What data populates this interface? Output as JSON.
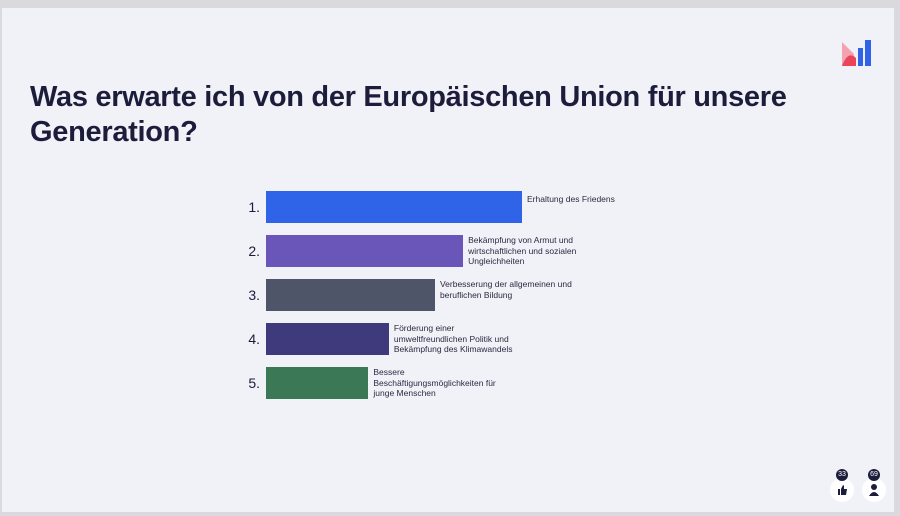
{
  "chart_data": {
    "type": "bar",
    "title": "Was erwarte ich von der Europäischen Union für unsere Generation?",
    "ranks": [
      "1.",
      "2.",
      "3.",
      "4.",
      "5."
    ],
    "categories": [
      "Erhaltung des Friedens",
      "Bekämpfung von Armut und wirtschaftlichen und sozialen Ungleichheiten",
      "Verbesserung der allgemeinen und beruflichen Bildung",
      "Förderung einer umweltfreundlichen Politik und Bekämpfung des Klimawandels",
      "Bessere Beschäftigungsmöglichkeiten für junge Menschen"
    ],
    "values": [
      100,
      77,
      66,
      48,
      40
    ],
    "colors": [
      "#2f64e8",
      "#6a55b9",
      "#4e5568",
      "#3f3a7b",
      "#3b7856"
    ]
  },
  "footer": {
    "reactions": 33,
    "participants": 69
  }
}
